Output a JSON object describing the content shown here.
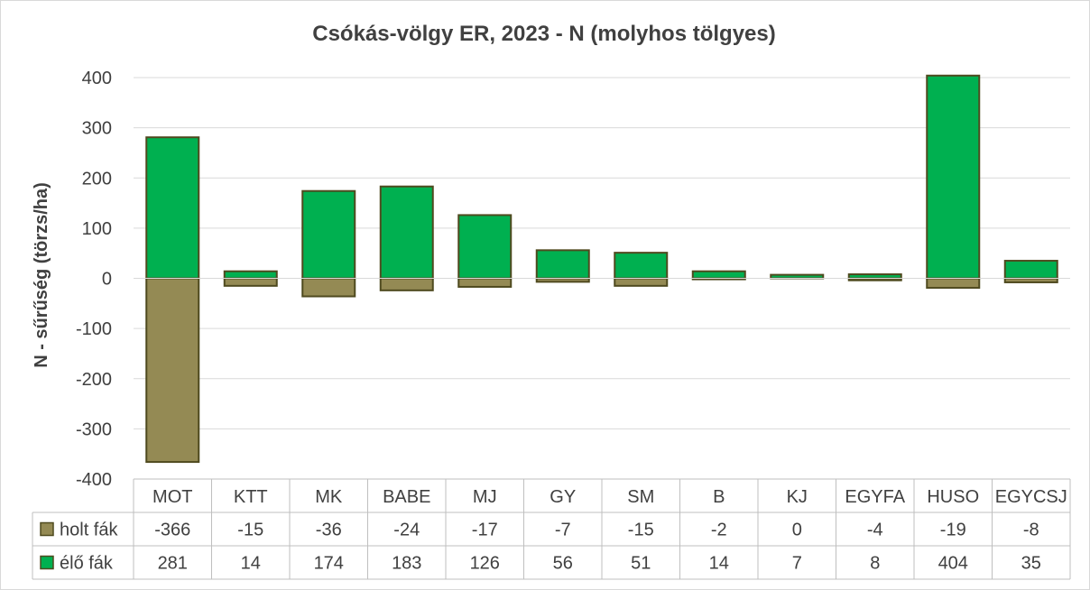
{
  "chart_data": {
    "type": "bar",
    "stacked": true,
    "title": "Csókás-völgy ER, 2023 - N (molyhos tölgyes)",
    "xlabel": "",
    "ylabel": "N - sűrűség (törzs/ha)",
    "ylim": [
      -400,
      400
    ],
    "yticks": [
      400,
      300,
      200,
      100,
      0,
      -100,
      -200,
      -300,
      -400
    ],
    "grid": true,
    "legend": "data-table",
    "categories": [
      "MOT",
      "KTT",
      "MK",
      "BABE",
      "MJ",
      "GY",
      "SM",
      "B",
      "KJ",
      "EGYFA",
      "HUSO",
      "EGYCSJ"
    ],
    "series": [
      {
        "name": "holt fák",
        "color": "#948a54",
        "values": [
          -366,
          -15,
          -36,
          -24,
          -17,
          -7,
          -15,
          -2,
          0,
          -4,
          -19,
          -8
        ]
      },
      {
        "name": "élő fák",
        "color": "#00b050",
        "values": [
          281,
          14,
          174,
          183,
          126,
          56,
          51,
          14,
          7,
          8,
          404,
          35
        ]
      }
    ],
    "bar_border_color": "#4f4a1f"
  }
}
